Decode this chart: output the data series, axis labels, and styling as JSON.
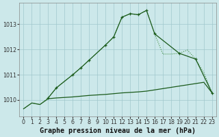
{
  "hours": [
    0,
    1,
    2,
    3,
    4,
    5,
    6,
    7,
    8,
    9,
    10,
    11,
    12,
    13,
    14,
    15,
    16,
    17,
    18,
    19,
    20,
    21,
    22,
    23
  ],
  "line_dotted": [
    1009.65,
    1009.88,
    1009.82,
    1010.08,
    1010.48,
    1010.75,
    1011.0,
    1011.28,
    1011.58,
    1011.88,
    1012.18,
    1012.5,
    1013.28,
    1013.42,
    1013.38,
    1013.55,
    1012.62,
    1011.82,
    1011.82,
    1011.85,
    1011.98,
    1011.62,
    1011.08,
    1010.28
  ],
  "line_solid_x": [
    3,
    4,
    6,
    7,
    8,
    10,
    11,
    12,
    13,
    14,
    15,
    16,
    19,
    21,
    23
  ],
  "line_solid_y": [
    1010.08,
    1010.48,
    1011.0,
    1011.28,
    1011.58,
    1012.18,
    1012.5,
    1013.28,
    1013.42,
    1013.38,
    1013.55,
    1012.62,
    1011.85,
    1011.62,
    1010.28
  ],
  "line_diag_x": [
    0,
    1,
    2,
    3,
    4,
    5,
    6,
    7,
    8,
    9,
    10,
    11,
    12,
    13,
    14,
    15,
    16,
    17,
    18,
    19,
    20,
    21,
    22,
    23
  ],
  "line_diag_y": [
    1009.65,
    1009.88,
    1009.82,
    1010.05,
    1010.08,
    1010.1,
    1010.12,
    1010.15,
    1010.18,
    1010.2,
    1010.22,
    1010.25,
    1010.28,
    1010.3,
    1010.32,
    1010.35,
    1010.4,
    1010.45,
    1010.5,
    1010.55,
    1010.6,
    1010.65,
    1010.7,
    1010.28
  ],
  "bg_color": "#cce8ea",
  "grid_color": "#a0c8cc",
  "color_light": "#3a8a3a",
  "color_dark": "#1a5a1a",
  "yticks": [
    1010,
    1011,
    1012,
    1013
  ],
  "ymin": 1009.35,
  "ymax": 1013.85,
  "xlabel": "Graphe pression niveau de la mer (hPa)",
  "fs_tick": 5.8,
  "fs_xlabel": 7.2
}
